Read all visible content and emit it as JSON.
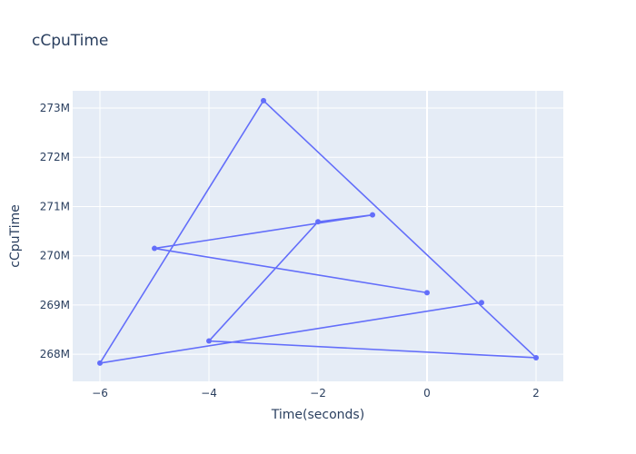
{
  "chart_data": {
    "type": "line",
    "title": "cCpuTime",
    "xlabel": "Time(seconds)",
    "ylabel": "cCpuTime",
    "xlim": [
      -6.5,
      2.5
    ],
    "ylim": [
      267.45,
      273.35
    ],
    "x_ticks": [
      -6,
      -4,
      -2,
      0,
      2
    ],
    "x_tick_labels": [
      "−6",
      "−4",
      "−2",
      "0",
      "2"
    ],
    "y_ticks": [
      268,
      269,
      270,
      271,
      272,
      273
    ],
    "y_tick_labels": [
      "268M",
      "269M",
      "270M",
      "271M",
      "272M",
      "273M"
    ],
    "y_unit": "millions",
    "grid": true,
    "legend": "none",
    "colors": {
      "line": "#636efa",
      "plot_bg": "#e5ecf6",
      "grid": "#ffffff",
      "text": "#2a3f5f"
    },
    "series": [
      {
        "x": [
          1,
          -6,
          -3,
          2,
          -4,
          -2,
          -1,
          -5,
          0
        ],
        "y": [
          269.05,
          267.82,
          273.15,
          267.93,
          268.27,
          270.69,
          270.83,
          270.15,
          269.25
        ]
      }
    ]
  }
}
